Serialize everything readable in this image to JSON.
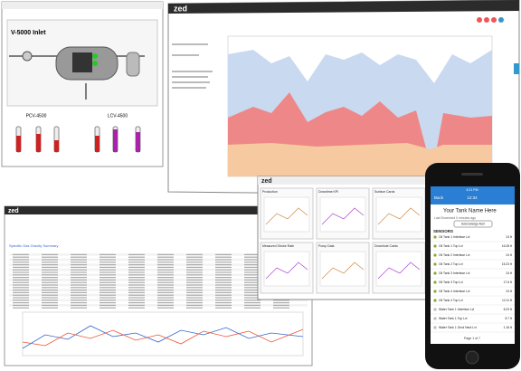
{
  "screens": {
    "process": {
      "title": "V-5000 Inlet",
      "tags": [
        "PCV-4500",
        "LCV-4500"
      ]
    },
    "trend": {
      "logo": "zed"
    },
    "table": {
      "logo": "zed",
      "title": "Specific Gas Gravity Summary"
    },
    "dashboard": {
      "logo": "zed",
      "widgets": [
        "Production",
        "Downtime KPI",
        "Surface Cards",
        "Measured Stroke Rate",
        "Pump Data",
        "Downhole Cards"
      ]
    },
    "phone": {
      "status_time": "4:21 PM",
      "back": "Back",
      "nav_title": "12:34",
      "title": "Your Tank Name Here",
      "subtitle": "Last Exceeded 0 minutes ago",
      "button": "Acknowledge Alert",
      "section": "SENSORS",
      "sensors": [
        {
          "name": "Oil Tank 1 Interface Lvl",
          "reading": "24 ft"
        },
        {
          "name": "Oil Tank 1 Top Lvl",
          "reading": "16.28 ft"
        },
        {
          "name": "Oil Tank 2 Interface Lvl",
          "reading": "24 ft"
        },
        {
          "name": "Oil Tank 2 Top Lvl",
          "reading": "15.23 ft"
        },
        {
          "name": "Oil Tank 3 Interface Lvl",
          "reading": "24 ft"
        },
        {
          "name": "Oil Tank 3 Top Lvl",
          "reading": "17.6 ft"
        },
        {
          "name": "Oil Tank 4 Interface Lvl",
          "reading": "24 ft"
        },
        {
          "name": "Oil Tank 4 Top Lvl",
          "reading": "12.11 ft"
        },
        {
          "name": "Water Tank 1 Interface Lvl",
          "reading": "8.23 ft"
        },
        {
          "name": "Water Tank 1 Top Lvl",
          "reading": "8.7 ft"
        },
        {
          "name": "Water Tank 1 Grnd Neut Lvl",
          "reading": "1.16 ft"
        }
      ],
      "pager": "Page 1 of 7"
    }
  }
}
